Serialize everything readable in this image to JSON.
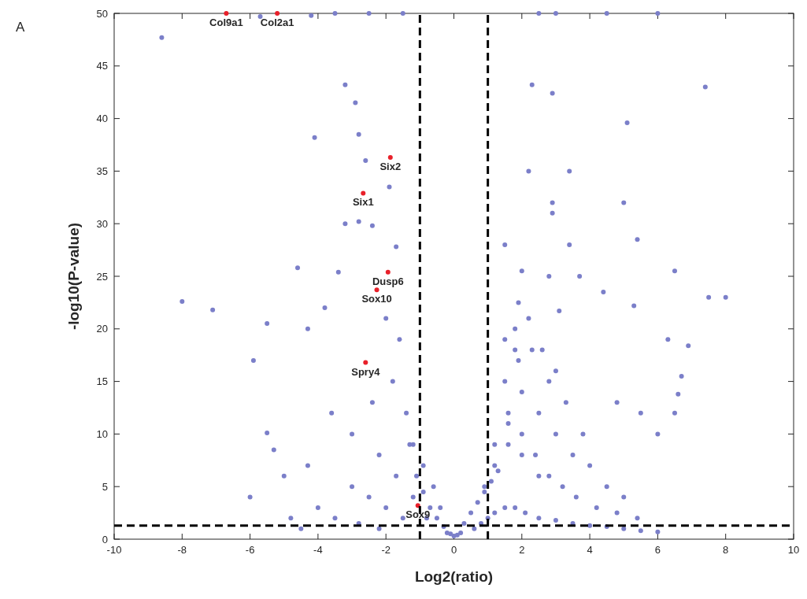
{
  "chart_data": {
    "type": "scatter",
    "xlabel": "Log2(ratio)",
    "ylabel": "-log10(P-value)",
    "xlim": [
      -10,
      10
    ],
    "ylim": [
      0,
      50
    ],
    "xticks": [
      -10,
      -8,
      -6,
      -4,
      -2,
      0,
      2,
      4,
      6,
      8,
      10
    ],
    "yticks": [
      0,
      5,
      10,
      15,
      20,
      25,
      30,
      35,
      40,
      45,
      50
    ],
    "grid": false,
    "marker": "circle",
    "series": [
      {
        "color": "#7b7fc9",
        "x": [
          -8.6,
          -5.7,
          -4.2,
          -3.5,
          -2.5,
          -1.5,
          -3.2,
          -2.9,
          -4.1,
          -2.8,
          -2.6,
          -1.9,
          -3.2,
          -2.8,
          -2.4,
          -4.6,
          -3.4,
          -1.7,
          -8,
          -7.1,
          -5.9,
          -5.5,
          -4.3,
          -3.8,
          -2,
          -1.6,
          -5.5,
          -5.3,
          -5,
          -4.3,
          -6,
          -3.6,
          -3,
          -2.4,
          -1.8,
          -1.3,
          -1.1,
          -0.9,
          -0.7,
          -0.5,
          -0.3,
          -1.4,
          -1.2,
          -0.9,
          -0.6,
          -0.4,
          -2.2,
          -1.7,
          -1.2,
          -0.8,
          -3,
          -2.5,
          -2,
          -1.5,
          -4,
          -3.5,
          -2.8,
          -2.2,
          -4.8,
          -4.5,
          -0.2,
          0.2,
          0.3,
          0.5,
          0.7,
          0.9,
          1.1,
          1.3,
          0.6,
          0.8,
          1.0,
          1.2,
          1.5,
          1.8,
          2.1,
          2.5,
          3,
          3.5,
          4,
          4.5,
          5,
          5.5,
          6,
          0.9,
          1.2,
          1.6,
          2,
          2.4,
          2.8,
          3.2,
          3.6,
          4.2,
          4.8,
          5.4,
          1.2,
          1.6,
          2,
          2.5,
          3,
          3.5,
          4,
          4.5,
          5,
          1.5,
          1.9,
          2.3,
          2.8,
          3.3,
          3.8,
          1.8,
          2.2,
          2.6,
          3,
          1.6,
          2,
          2.5,
          2.5,
          3,
          4.5,
          6,
          2.3,
          2.9,
          7.4,
          5.1,
          2.2,
          3.4,
          2.9,
          5,
          2.9,
          1.5,
          3.4,
          5.4,
          2,
          2.8,
          3.7,
          4.4,
          6.5,
          7.5,
          8,
          1.9,
          3.1,
          5.3,
          6.3,
          6.9,
          6.7,
          6.6,
          6.5,
          6,
          5.5,
          4.8,
          1.5,
          1.8,
          0,
          -0.1,
          0.1
        ],
        "values": [
          47.7,
          49.7,
          49.8,
          50,
          50,
          50,
          43.2,
          41.5,
          38.2,
          38.5,
          36,
          33.5,
          30,
          30.2,
          29.8,
          25.8,
          25.4,
          27.8,
          22.6,
          21.8,
          17,
          20.5,
          20,
          22,
          21,
          19,
          10.1,
          8.5,
          6,
          7,
          4,
          12,
          10,
          13,
          15,
          9,
          6,
          4.5,
          3,
          2,
          1.2,
          12,
          9,
          7,
          5,
          3,
          8,
          6,
          4,
          2,
          5,
          4,
          3,
          2,
          3,
          2,
          1.5,
          1,
          2,
          1,
          0.6,
          0.6,
          1.5,
          2.5,
          3.5,
          4.5,
          5.5,
          6.5,
          1,
          1.5,
          2,
          2.5,
          3,
          3,
          2.5,
          2,
          1.8,
          1.5,
          1.3,
          1.2,
          1,
          0.8,
          0.7,
          5,
          7,
          9,
          10,
          8,
          6,
          5,
          4,
          3,
          2.5,
          2,
          9,
          12,
          14,
          12,
          10,
          8,
          7,
          5,
          4,
          15,
          17,
          18,
          15,
          13,
          10,
          20,
          21,
          18,
          16,
          11,
          8,
          6,
          50,
          50,
          50,
          50,
          43.2,
          42.4,
          43,
          39.6,
          35,
          35,
          32,
          32,
          31,
          28,
          28,
          28.5,
          25.5,
          25,
          25,
          23.5,
          25.5,
          23,
          23,
          22.5,
          21.7,
          22.2,
          19,
          18.4,
          15.5,
          13.8,
          12,
          10,
          12,
          13,
          19,
          18,
          0.3,
          0.5,
          0.4
        ]
      },
      {
        "color": "#e8202a",
        "x": [
          -6.7,
          -5.2,
          -1.87,
          -2.67,
          -1.94,
          -2.27,
          -2.6,
          -1.06
        ],
        "values": [
          50,
          50,
          36.3,
          32.9,
          25.4,
          23.7,
          16.8,
          3.2
        ]
      }
    ],
    "ref_lines": [
      {
        "axis": "x",
        "value": -1,
        "color": "#000000",
        "line_style": "dashed"
      },
      {
        "axis": "x",
        "value": 1,
        "color": "#000000",
        "line_style": "dashed"
      },
      {
        "axis": "y",
        "value": 1.3,
        "color": "#000000",
        "line_style": "dashed"
      }
    ],
    "annotations": [
      "A",
      {
        "text": "Col9a1",
        "x": -6.7,
        "y": 50
      },
      {
        "text": "Col2a1",
        "x": -5.2,
        "y": 50
      },
      {
        "text": "Six2",
        "x": -1.87,
        "y": 36.3
      },
      {
        "text": "Six1",
        "x": -2.67,
        "y": 32.9
      },
      {
        "text": "Dusp6",
        "x": -1.94,
        "y": 25.4
      },
      {
        "text": "Sox10",
        "x": -2.27,
        "y": 23.7
      },
      {
        "text": "Spry4",
        "x": -2.6,
        "y": 16.8
      },
      {
        "text": "Sox9",
        "x": -1.06,
        "y": 3.2
      }
    ]
  }
}
